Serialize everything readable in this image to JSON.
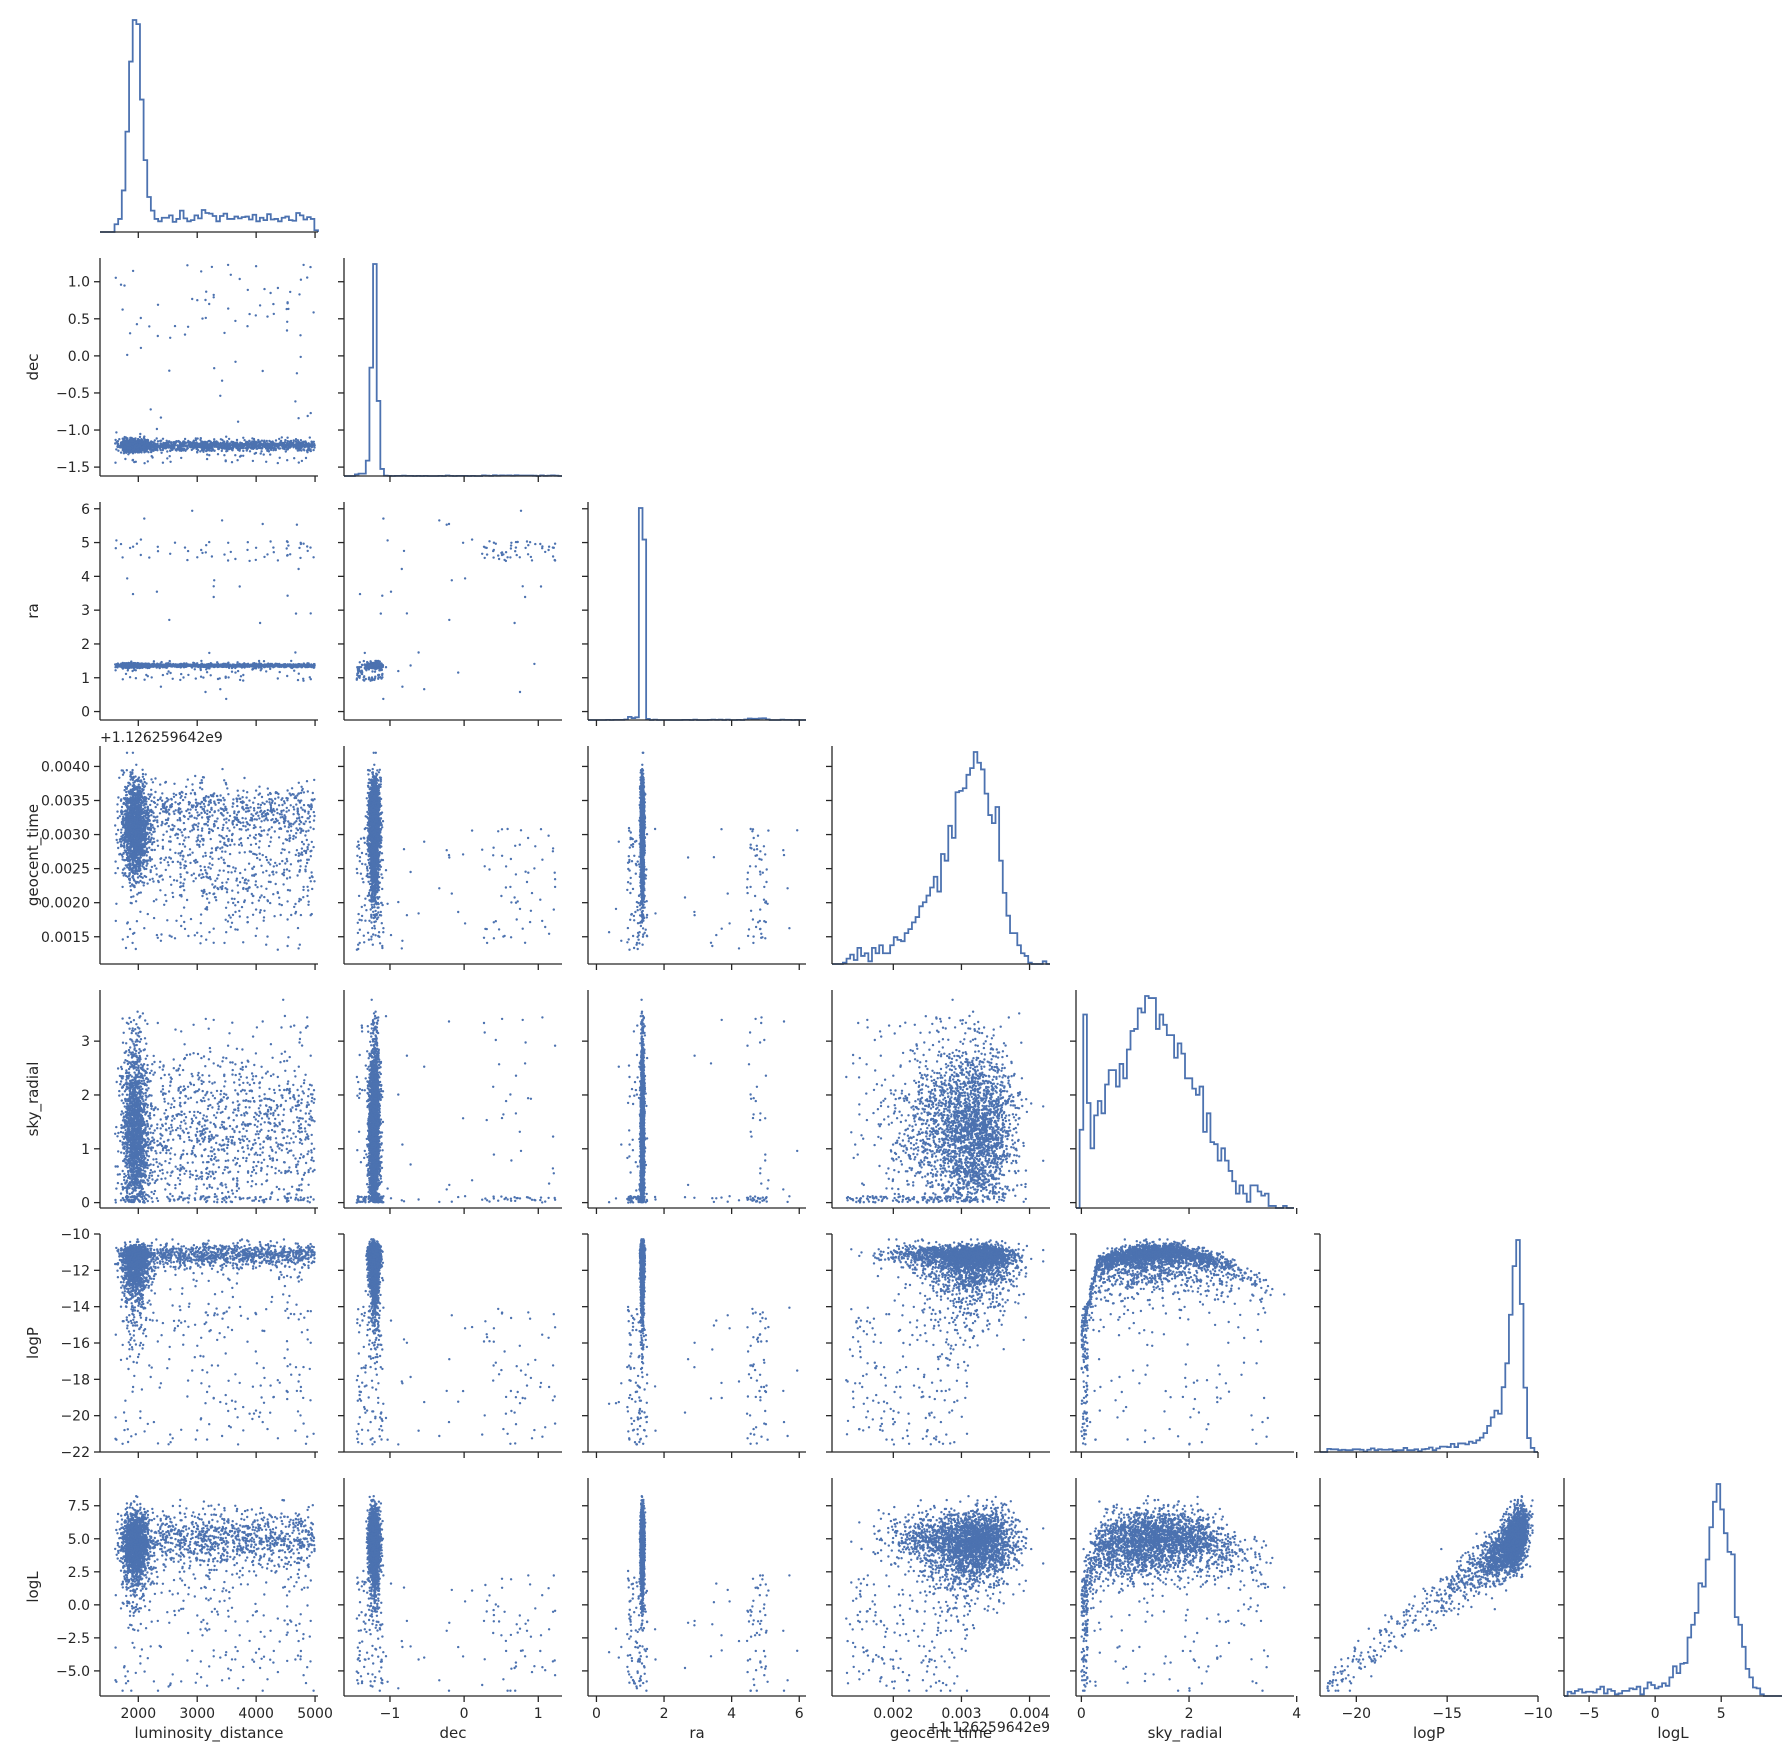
{
  "chart_data": {
    "type": "pairplot",
    "layout": "lower-triangle",
    "variables": [
      "luminosity_distance",
      "dec",
      "ra",
      "geocent_time",
      "sky_radial",
      "logP",
      "logL"
    ],
    "offset_labels": {
      "geocent_time": "+1.126259642e9"
    },
    "colors": {
      "marker": "#4c72b0",
      "axis": "#262626"
    },
    "diagonal_type": "histogram-step",
    "offdiagonal_type": "scatter",
    "axes": {
      "luminosity_distance": {
        "lim": [
          1350,
          5050
        ],
        "ticks": [
          2000,
          3000,
          4000,
          5000
        ],
        "tick_labels": [
          "2000",
          "3000",
          "4000",
          "5000"
        ]
      },
      "dec": {
        "lim": [
          -1.62,
          1.32
        ],
        "ticks": [
          -1.5,
          -1.0,
          -0.5,
          0.0,
          0.5,
          1.0
        ],
        "tick_labels": [
          "−1.5",
          "−1.0",
          "−0.5",
          "0.0",
          "0.5",
          "1.0"
        ],
        "x_ticks": [
          -1,
          0,
          1
        ],
        "x_tick_labels": [
          "−1",
          "0",
          "1"
        ]
      },
      "ra": {
        "lim": [
          -0.25,
          6.2
        ],
        "ticks": [
          0,
          1,
          2,
          3,
          4,
          5,
          6
        ],
        "tick_labels": [
          "0",
          "1",
          "2",
          "3",
          "4",
          "5",
          "6"
        ],
        "x_ticks": [
          0,
          2,
          4,
          6
        ],
        "x_tick_labels": [
          "0",
          "2",
          "4",
          "6"
        ]
      },
      "geocent_time": {
        "lim": [
          0.0011,
          0.0043
        ],
        "ticks": [
          0.0015,
          0.002,
          0.0025,
          0.003,
          0.0035,
          0.004
        ],
        "tick_labels": [
          "0.0015",
          "0.0020",
          "0.0025",
          "0.0030",
          "0.0035",
          "0.0040"
        ],
        "x_ticks": [
          0.002,
          0.003,
          0.004
        ],
        "x_tick_labels": [
          "0.002",
          "0.003",
          "0.004"
        ]
      },
      "sky_radial": {
        "lim": [
          -0.1,
          3.95
        ],
        "ticks": [
          0,
          1,
          2,
          3
        ],
        "tick_labels": [
          "0",
          "1",
          "2",
          "3"
        ],
        "x_ticks": [
          0,
          2,
          4
        ],
        "x_tick_labels": [
          "0",
          "2",
          "4"
        ]
      },
      "logP": {
        "lim": [
          -22.0,
          -10.0
        ],
        "ticks": [
          -22,
          -20,
          -18,
          -16,
          -14,
          -12,
          -10
        ],
        "tick_labels": [
          "−22",
          "−20",
          "−18",
          "−16",
          "−14",
          "−12",
          "−10"
        ],
        "x_ticks": [
          -20,
          -15,
          -10
        ],
        "x_tick_labels": [
          "−20",
          "−15",
          "−10"
        ]
      },
      "logL": {
        "lim": [
          -6.9,
          9.6
        ],
        "ticks": [
          -5.0,
          -2.5,
          0.0,
          2.5,
          5.0,
          7.5
        ],
        "tick_labels": [
          "−5.0",
          "−2.5",
          "0.0",
          "2.5",
          "5.0",
          "7.5"
        ],
        "x_ticks": [
          -5,
          0,
          5
        ],
        "x_tick_labels": [
          "−5",
          "0",
          "5"
        ]
      }
    },
    "marginals": {
      "luminosity_distance": {
        "peak": 2000,
        "width": 120,
        "tail_level": 0.03,
        "tail_range": [
          2200,
          5000
        ]
      },
      "dec": {
        "peak": -1.2,
        "width": 0.04,
        "tail_level": 0.002,
        "tail_range": [
          -1.1,
          1.25
        ]
      },
      "ra": {
        "peak": 1.35,
        "width": 0.04,
        "tail_level": 0.002,
        "tail_range": [
          1.5,
          6.0
        ]
      },
      "geocent_time": {
        "peak": 0.00305,
        "width": 0.00038
      },
      "sky_radial": {
        "peak": 1.4,
        "width": 0.7,
        "range": [
          0,
          3.9
        ]
      },
      "logP": {
        "peak": -11.0,
        "width": 0.5,
        "tail_range": [
          -22,
          -11
        ]
      },
      "logL": {
        "peak": 4.8,
        "width": 1.1
      }
    },
    "x_labels_bottom": [
      "luminosity_distance",
      "dec",
      "ra",
      "geocent_time",
      "sky_radial",
      "logP",
      "logL"
    ],
    "y_labels_left": [
      "dec",
      "ra",
      "geocent_time",
      "sky_radial",
      "logP",
      "logL"
    ]
  }
}
